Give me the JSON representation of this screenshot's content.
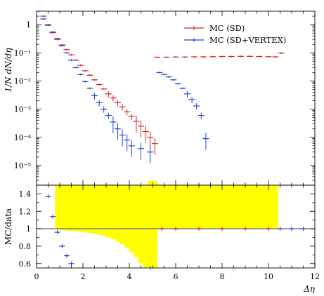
{
  "chart_data": [
    {
      "panel": "upper",
      "type": "scatter",
      "ylabel": "1/N dN/dη",
      "yscale": "log",
      "ylim": [
        2e-06,
        3
      ],
      "xlim": [
        0,
        12
      ],
      "xticks": [
        0,
        2,
        4,
        6,
        8,
        10,
        12
      ],
      "yticks": [
        {
          "value": 1,
          "label": "1"
        },
        {
          "value": 0.1,
          "label": "10⁻¹"
        },
        {
          "value": 0.01,
          "label": "10⁻²"
        },
        {
          "value": 0.001,
          "label": "10⁻³"
        },
        {
          "value": 0.0001,
          "label": "10⁻⁴"
        },
        {
          "value": 1e-05,
          "label": "10⁻⁵"
        }
      ],
      "legend_position": "top-right",
      "series": [
        {
          "name": "MC (SD)",
          "color": "#d62020",
          "points": [
            [
              0.3,
              2.0
            ],
            [
              0.5,
              1.0
            ],
            [
              0.7,
              0.52
            ],
            [
              0.9,
              0.3
            ],
            [
              1.1,
              0.19
            ],
            [
              1.3,
              0.13
            ],
            [
              1.5,
              0.085
            ],
            [
              1.7,
              0.055
            ],
            [
              1.9,
              0.036
            ],
            [
              2.1,
              0.023
            ],
            [
              2.3,
              0.016
            ],
            [
              2.5,
              0.011
            ],
            [
              2.7,
              0.0075
            ],
            [
              2.9,
              0.0052
            ],
            [
              3.1,
              0.0035
            ],
            [
              3.3,
              0.0025
            ],
            [
              3.5,
              0.0017
            ],
            [
              3.7,
              0.0012
            ],
            [
              3.9,
              0.0008
            ],
            [
              4.1,
              0.00055
            ],
            [
              4.3,
              0.00037
            ],
            [
              4.5,
              0.00025
            ],
            [
              4.7,
              0.00016
            ],
            [
              4.9,
              0.0001
            ],
            [
              5.1,
              6e-05
            ],
            [
              5.2,
              0.07
            ],
            [
              5.6,
              0.07
            ],
            [
              6.0,
              0.071
            ],
            [
              6.4,
              0.071
            ],
            [
              6.8,
              0.072
            ],
            [
              7.2,
              0.072
            ],
            [
              7.6,
              0.073
            ],
            [
              8.0,
              0.074
            ],
            [
              8.4,
              0.074
            ],
            [
              8.8,
              0.075
            ],
            [
              9.2,
              0.075
            ],
            [
              9.6,
              0.074
            ],
            [
              10.0,
              0.073
            ],
            [
              10.3,
              0.072
            ],
            [
              10.55,
              0.098
            ]
          ]
        },
        {
          "name": "MC (SD+VERTEX)",
          "color": "#2040d8",
          "points": [
            [
              0.1,
              3.0
            ],
            [
              0.3,
              1.6
            ],
            [
              0.5,
              0.95
            ],
            [
              0.7,
              0.55
            ],
            [
              0.9,
              0.32
            ],
            [
              1.1,
              0.18
            ],
            [
              1.3,
              0.1
            ],
            [
              1.5,
              0.055
            ],
            [
              1.7,
              0.03
            ],
            [
              1.9,
              0.017
            ],
            [
              2.1,
              0.0095
            ],
            [
              2.3,
              0.0055
            ],
            [
              2.5,
              0.003
            ],
            [
              2.7,
              0.0017
            ],
            [
              2.9,
              0.001
            ],
            [
              3.1,
              0.0006
            ],
            [
              3.3,
              0.00035
            ],
            [
              3.5,
              0.0002
            ],
            [
              3.7,
              0.00012
            ],
            [
              3.9,
              8e-05
            ],
            [
              4.1,
              5e-05
            ],
            [
              4.5,
              4e-05
            ],
            [
              4.9,
              3e-05
            ],
            [
              5.3,
              0.02
            ],
            [
              5.5,
              0.017
            ],
            [
              5.7,
              0.014
            ],
            [
              5.9,
              0.011
            ],
            [
              6.1,
              0.008
            ],
            [
              6.3,
              0.0055
            ],
            [
              6.5,
              0.0035
            ],
            [
              6.7,
              0.0022
            ],
            [
              6.9,
              0.0013
            ],
            [
              7.1,
              0.0006
            ],
            [
              7.3,
              9e-05
            ]
          ]
        }
      ]
    },
    {
      "panel": "lower",
      "type": "scatter",
      "xlabel": "Δη",
      "ylabel": "MC/data",
      "ylim": [
        0.55,
        1.5
      ],
      "xlim": [
        0,
        12
      ],
      "xticks": [
        0,
        2,
        4,
        6,
        8,
        10,
        12
      ],
      "yticks": [
        0.6,
        0.8,
        1,
        1.2,
        1.4
      ],
      "series": [
        {
          "name": "MC (SD)",
          "color": "#d62020",
          "points": [
            [
              5.4,
              1.0
            ],
            [
              6.0,
              1.0
            ],
            [
              7.0,
              1.0
            ],
            [
              8.0,
              1.0
            ],
            [
              9.0,
              1.0
            ],
            [
              10.0,
              1.0
            ]
          ]
        },
        {
          "name": "MC (SD+VERTEX)",
          "color": "#2040d8",
          "points": [
            [
              0.5,
              1.37
            ],
            [
              0.7,
              1.14
            ],
            [
              0.9,
              0.96
            ],
            [
              1.1,
              0.8
            ],
            [
              1.3,
              0.69
            ],
            [
              1.5,
              0.6
            ],
            [
              4.9,
              0.55
            ],
            [
              10.5,
              1.0
            ],
            [
              11.0,
              1.0
            ],
            [
              11.5,
              1.0
            ]
          ]
        }
      ],
      "uncertainty_band": {
        "color": "#ffff00",
        "half_widths": [
          [
            0.0,
            0.0
          ],
          [
            0.2,
            0.0
          ],
          [
            0.4,
            0.0
          ],
          [
            0.6,
            0.0
          ],
          [
            0.8,
            0.01
          ],
          [
            1.0,
            0.015
          ],
          [
            1.2,
            0.02
          ],
          [
            1.4,
            0.025
          ],
          [
            1.6,
            0.03
          ],
          [
            1.8,
            0.035
          ],
          [
            2.0,
            0.04
          ],
          [
            2.2,
            0.05
          ],
          [
            2.4,
            0.06
          ],
          [
            2.6,
            0.07
          ],
          [
            2.8,
            0.08
          ],
          [
            3.0,
            0.1
          ],
          [
            3.2,
            0.12
          ],
          [
            3.4,
            0.15
          ],
          [
            3.6,
            0.18
          ],
          [
            3.8,
            0.22
          ],
          [
            4.0,
            0.27
          ],
          [
            4.2,
            0.33
          ],
          [
            4.4,
            0.4
          ],
          [
            4.6,
            0.48
          ],
          [
            4.8,
            0.55
          ],
          [
            5.0,
            0.55
          ],
          [
            5.2,
            0.005
          ],
          [
            5.4,
            0.005
          ],
          [
            5.6,
            0.005
          ],
          [
            5.8,
            0.005
          ],
          [
            6.0,
            0.005
          ],
          [
            6.2,
            0.005
          ],
          [
            6.4,
            0.005
          ],
          [
            6.6,
            0.005
          ],
          [
            6.8,
            0.005
          ],
          [
            7.0,
            0.005
          ],
          [
            7.2,
            0.005
          ],
          [
            7.4,
            0.005
          ],
          [
            7.6,
            0.005
          ],
          [
            7.8,
            0.005
          ],
          [
            8.0,
            0.005
          ],
          [
            8.2,
            0.005
          ],
          [
            8.4,
            0.005
          ],
          [
            8.6,
            0.005
          ],
          [
            8.8,
            0.005
          ],
          [
            9.0,
            0.005
          ],
          [
            9.2,
            0.005
          ],
          [
            9.4,
            0.005
          ],
          [
            9.6,
            0.005
          ],
          [
            9.8,
            0.005
          ],
          [
            10.0,
            0.005
          ],
          [
            10.2,
            0.005
          ]
        ]
      }
    }
  ]
}
